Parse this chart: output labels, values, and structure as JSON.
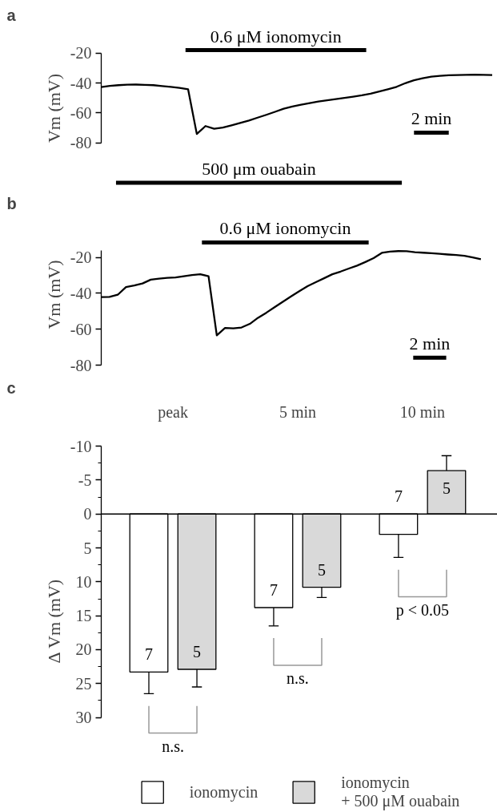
{
  "chart_data": [
    {
      "type": "line",
      "title": "a",
      "ylabel": "Vm (mV)",
      "tick_labels": "y",
      "ylim": [
        -80,
        -20
      ],
      "yticks": [
        -80,
        -60,
        -40,
        -20
      ],
      "categories": [
        null,
        null,
        null,
        null,
        null,
        null,
        null,
        null,
        null,
        null,
        null,
        null,
        null,
        null,
        null,
        null,
        null,
        null,
        null,
        null,
        null,
        null,
        null,
        null,
        null,
        null,
        null,
        null,
        null,
        null,
        null,
        null,
        null,
        null,
        null,
        null,
        null,
        null,
        null,
        null,
        null,
        null,
        null,
        null,
        null,
        null
      ],
      "series": [
        {
          "color": "#000000",
          "values": [
            -42.7,
            -41.9,
            -41.4,
            -41.1,
            -41.0,
            -41.2,
            -41.4,
            -42.0,
            -42.6,
            -43.2,
            -44.2,
            -74.0,
            -68.7,
            -70.5,
            -69.7,
            -68.2,
            -66.6,
            -65.0,
            -63.1,
            -61.2,
            -59.2,
            -57.1,
            -55.7,
            -54.5,
            -53.4,
            -52.3,
            -51.5,
            -50.7,
            -49.9,
            -49.1,
            -48.2,
            -47.1,
            -45.6,
            -44.1,
            -42.5,
            -40.1,
            -38.1,
            -36.8,
            -35.7,
            -35.2,
            -34.8,
            -34.7,
            -34.5,
            -34.4,
            -34.5,
            -34.7
          ]
        }
      ],
      "annotations": [
        "0.6 μM ionomycin",
        "500 μm ouabain",
        "2 min"
      ]
    },
    {
      "type": "line",
      "title": "b",
      "ylabel": "Vm (mV)",
      "tick_labels": "y",
      "ylim": [
        -80,
        -16
      ],
      "yticks": [
        -80,
        -60,
        -40,
        -20
      ],
      "categories": [
        null,
        null,
        null,
        null,
        null,
        null,
        null,
        null,
        null,
        null,
        null,
        null,
        null,
        null,
        null,
        null,
        null,
        null,
        null,
        null,
        null,
        null,
        null,
        null,
        null,
        null,
        null,
        null,
        null,
        null,
        null,
        null,
        null,
        null,
        null,
        null,
        null,
        null,
        null,
        null,
        null,
        null,
        null,
        null,
        null,
        null,
        null
      ],
      "series": [
        {
          "color": "#000000",
          "values": [
            -42.1,
            -42.0,
            -40.8,
            -36.5,
            -35.6,
            -34.5,
            -32.4,
            -31.8,
            -31.4,
            -31.2,
            -30.5,
            -29.8,
            -29.4,
            -30.5,
            -63.4,
            -59.3,
            -59.5,
            -59.0,
            -57.0,
            -53.6,
            -50.8,
            -47.7,
            -44.7,
            -41.7,
            -38.8,
            -36.0,
            -33.8,
            -31.6,
            -29.4,
            -27.9,
            -26.2,
            -24.6,
            -22.6,
            -20.4,
            -17.5,
            -16.8,
            -16.5,
            -16.6,
            -17.1,
            -17.4,
            -17.7,
            -18.0,
            -18.4,
            -18.7,
            -19.1,
            -20.0,
            -21.0
          ]
        }
      ],
      "annotations": [
        "0.6 μM ionomycin",
        "2 min"
      ]
    },
    {
      "type": "bar",
      "title": "c",
      "ylabel": "Δ Vm (mV)",
      "categories": [
        "peak",
        "5 min",
        "10 min"
      ],
      "ylim": [
        30,
        -10
      ],
      "yticks": [
        -10,
        {
          "value": -7.5,
          "label": null
        },
        -5,
        {
          "value": -2.5,
          "label": null
        },
        0,
        {
          "value": 2.5,
          "label": null
        },
        5,
        {
          "value": 7.5,
          "label": null
        },
        10,
        {
          "value": 12.5,
          "label": null
        },
        15,
        {
          "value": 17.5,
          "label": null
        },
        20,
        {
          "value": 22.5,
          "label": null
        },
        25,
        {
          "value": 27.5,
          "label": null
        },
        30
      ],
      "legend": "bottom",
      "series": [
        {
          "name": "ionomycin",
          "color": "#ffffff",
          "values": [
            23.3,
            13.8,
            3.0
          ],
          "errors": [
            [
              23.3,
              26.5
            ],
            [
              13.8,
              16.5
            ],
            [
              3.0,
              6.4
            ]
          ]
        },
        {
          "name": "ionomycin\n+ 500 μM ouabain",
          "color": "#d9d9d9",
          "values": [
            22.9,
            10.8,
            -6.4
          ],
          "errors": [
            [
              22.9,
              25.5
            ],
            [
              10.8,
              12.3
            ],
            [
              -8.6,
              -6.4
            ]
          ]
        }
      ],
      "annotations": [
        "7",
        "5",
        "7",
        "5",
        "7",
        "5",
        "n.s.",
        "n.s.",
        "p < 0.05"
      ]
    }
  ]
}
